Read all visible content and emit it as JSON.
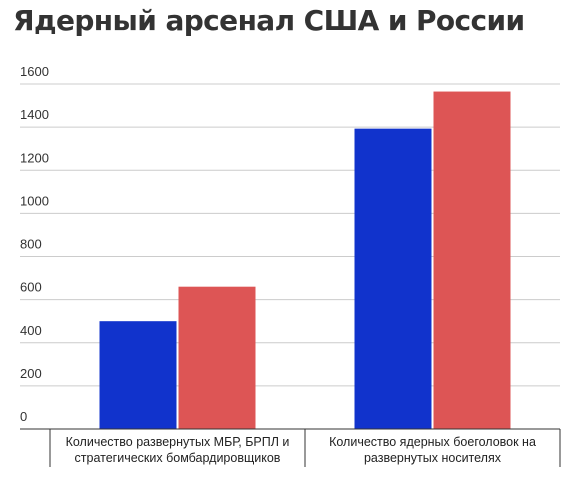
{
  "chart_data": {
    "type": "bar",
    "title": "Ядерный арсенал США и России",
    "xlabel": "",
    "ylabel": "",
    "ylim": [
      0,
      1600
    ],
    "yticks": [
      0,
      200,
      400,
      600,
      800,
      1000,
      1200,
      1400,
      1600
    ],
    "grid": true,
    "legend": "none",
    "categories": [
      [
        "Количество развернутых МБР, БРПЛ и",
        "стратегических бомбардировщиков"
      ],
      [
        "Количество ядерных боеголовок на",
        "развернутых носителях"
      ]
    ],
    "series": [
      {
        "color": "#1133cc",
        "values": [
          500,
          1393
        ]
      },
      {
        "color": "#dd5555",
        "values": [
          660,
          1565
        ]
      }
    ]
  }
}
